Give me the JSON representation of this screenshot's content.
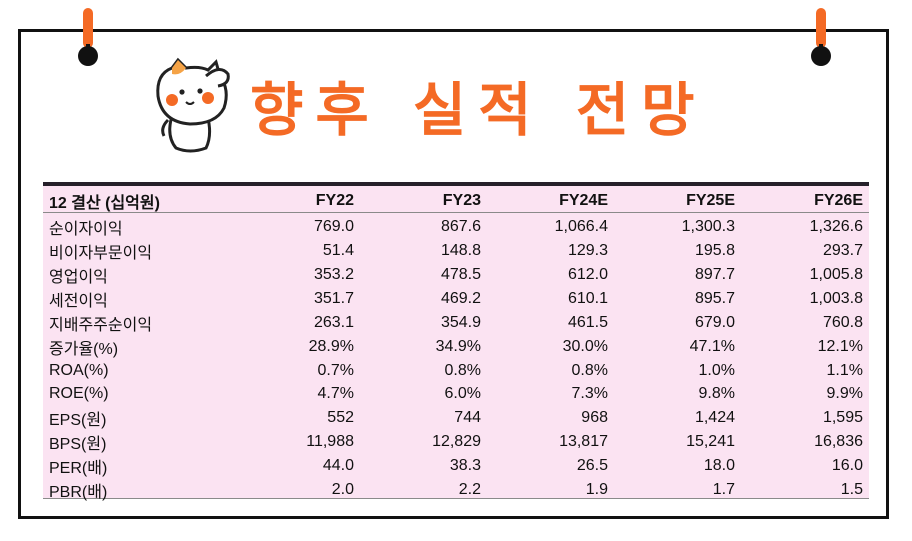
{
  "title": "향후 실적 전망",
  "colors": {
    "title": "#f46a25",
    "pin": "#f46a25",
    "table_bg": "#fbe3f2",
    "border": "#111111"
  },
  "icons": [
    "pushpin-icon",
    "cat-mascot-icon"
  ],
  "table": {
    "headers": [
      "12 결산 (십억원)",
      "FY22",
      "FY23",
      "FY24E",
      "FY25E",
      "FY26E"
    ],
    "rows": [
      {
        "label": "순이자이익",
        "values": [
          "769.0",
          "867.6",
          "1,066.4",
          "1,300.3",
          "1,326.6"
        ]
      },
      {
        "label": "비이자부문이익",
        "values": [
          "51.4",
          "148.8",
          "129.3",
          "195.8",
          "293.7"
        ]
      },
      {
        "label": "영업이익",
        "values": [
          "353.2",
          "478.5",
          "612.0",
          "897.7",
          "1,005.8"
        ]
      },
      {
        "label": "세전이익",
        "values": [
          "351.7",
          "469.2",
          "610.1",
          "895.7",
          "1,003.8"
        ]
      },
      {
        "label": "지배주주순이익",
        "values": [
          "263.1",
          "354.9",
          "461.5",
          "679.0",
          "760.8"
        ]
      },
      {
        "label": "증가율(%)",
        "values": [
          "28.9%",
          "34.9%",
          "30.0%",
          "47.1%",
          "12.1%"
        ]
      },
      {
        "label": "ROA(%)",
        "values": [
          "0.7%",
          "0.8%",
          "0.8%",
          "1.0%",
          "1.1%"
        ]
      },
      {
        "label": "ROE(%)",
        "values": [
          "4.7%",
          "6.0%",
          "7.3%",
          "9.8%",
          "9.9%"
        ]
      },
      {
        "label": "EPS(원)",
        "values": [
          "552",
          "744",
          "968",
          "1,424",
          "1,595"
        ]
      },
      {
        "label": "BPS(원)",
        "values": [
          "11,988",
          "12,829",
          "13,817",
          "15,241",
          "16,836"
        ]
      },
      {
        "label": "PER(배)",
        "values": [
          "44.0",
          "38.3",
          "26.5",
          "18.0",
          "16.0"
        ]
      },
      {
        "label": "PBR(배)",
        "values": [
          "2.0",
          "2.2",
          "1.9",
          "1.7",
          "1.5"
        ]
      }
    ]
  }
}
